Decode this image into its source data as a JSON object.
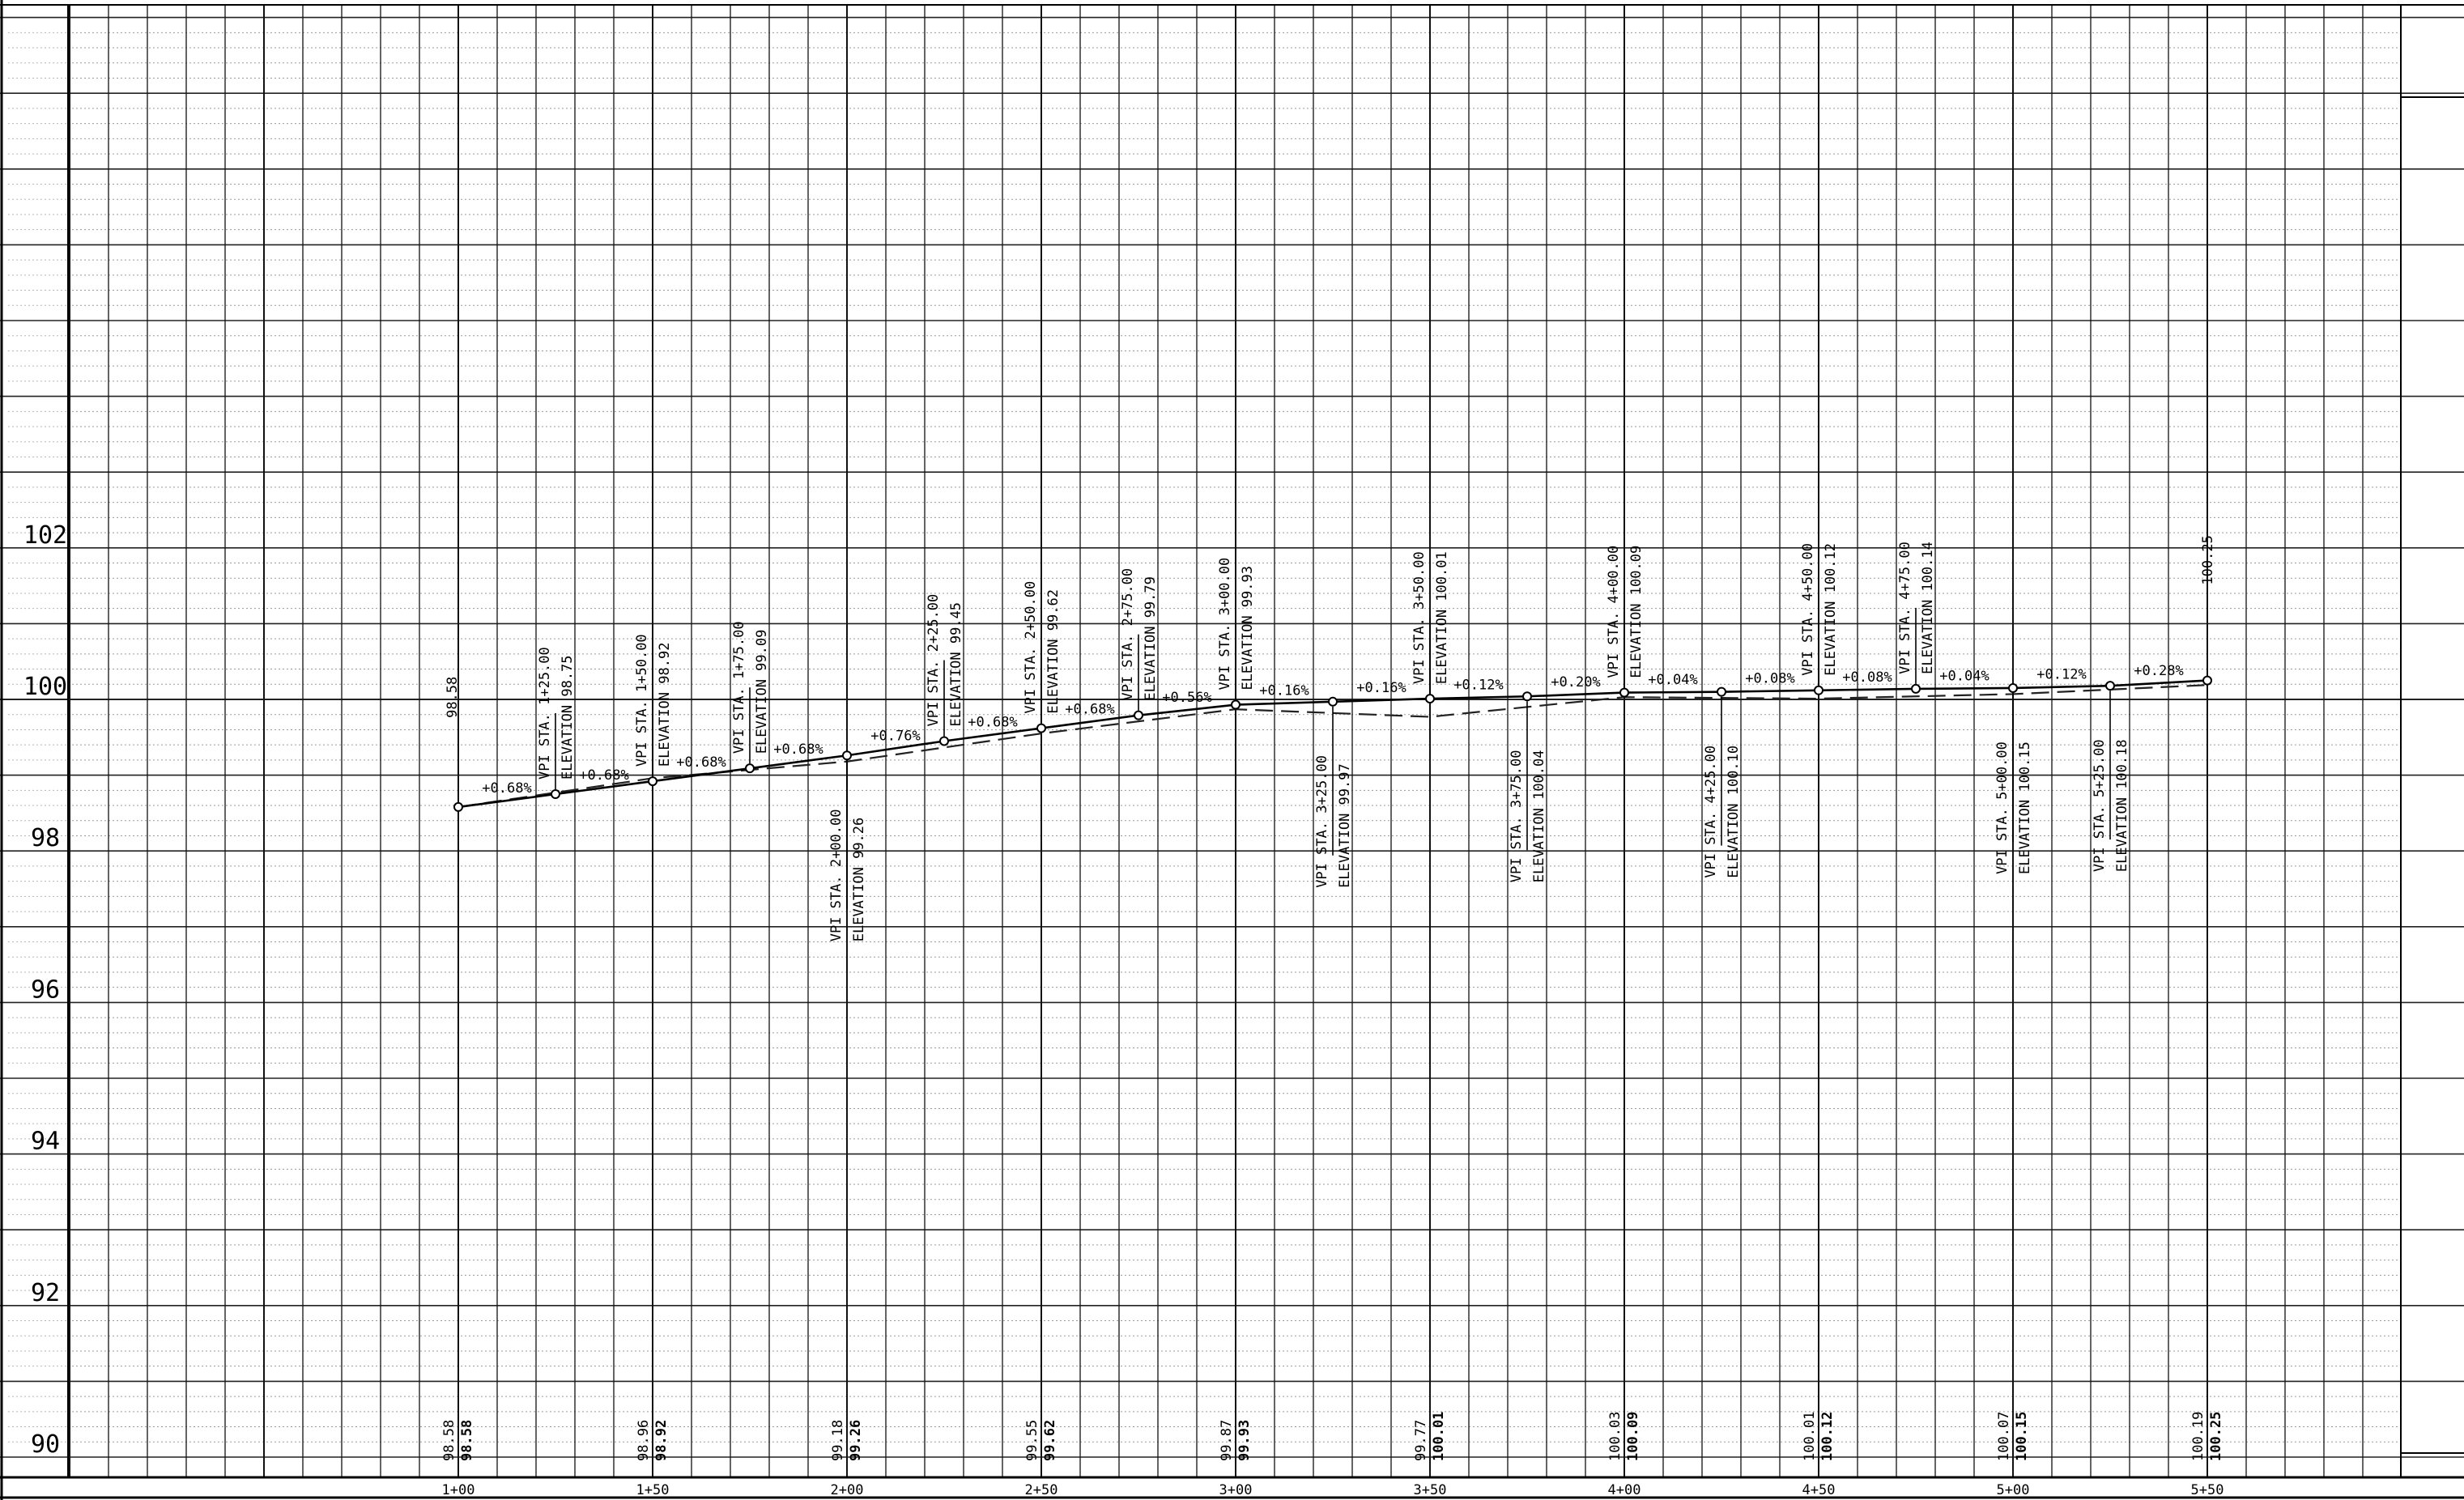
{
  "chart_data": {
    "type": "line",
    "title": "",
    "xlabel": "",
    "ylabel": "",
    "ylim": [
      90,
      110
    ],
    "x_tick_labels": [
      "1+00",
      "1+50",
      "2+00",
      "2+50",
      "3+00",
      "3+50",
      "4+00",
      "4+50",
      "5+00",
      "5+50"
    ],
    "y_tick_labels": [
      "90",
      "92",
      "94",
      "96",
      "98",
      "100",
      "102"
    ],
    "series": [
      {
        "style": "solid",
        "x": [
          100,
          125,
          150,
          175,
          200,
          225,
          250,
          275,
          300,
          325,
          350,
          375,
          400,
          425,
          450,
          475,
          500,
          525,
          550
        ],
        "y": [
          98.58,
          98.75,
          98.92,
          99.09,
          99.26,
          99.45,
          99.62,
          99.79,
          99.93,
          99.97,
          100.01,
          100.04,
          100.09,
          100.1,
          100.12,
          100.14,
          100.15,
          100.18,
          100.25
        ]
      },
      {
        "style": "dashed",
        "x": [
          100,
          150,
          200,
          250,
          300,
          350,
          400,
          450,
          500,
          550
        ],
        "y": [
          98.58,
          98.96,
          99.18,
          99.55,
          99.87,
          99.77,
          100.03,
          100.01,
          100.07,
          100.19
        ]
      }
    ],
    "grade_labels": [
      "+0.68%",
      "+0.68%",
      "+0.68%",
      "+0.68%",
      "+0.76%",
      "+0.68%",
      "+0.68%",
      "+0.56%",
      "+0.16%",
      "+0.16%",
      "+0.12%",
      "+0.20%",
      "+0.04%",
      "+0.08%",
      "+0.08%",
      "+0.04%",
      "+0.12%",
      "+0.28%"
    ],
    "vpi_labels": [
      {
        "sta": "VPI STA. 1+25.00",
        "elev": "ELEVATION 98.75",
        "pos": "above"
      },
      {
        "sta": "VPI STA. 1+50.00",
        "elev": "ELEVATION 98.92",
        "pos": "above"
      },
      {
        "sta": "VPI STA. 1+75.00",
        "elev": "ELEVATION 99.09",
        "pos": "above"
      },
      {
        "sta": "VPI STA. 2+00.00",
        "elev": "ELEVATION 99.26",
        "pos": "below"
      },
      {
        "sta": "VPI STA. 2+25.00",
        "elev": "ELEVATION 99.45",
        "pos": "above"
      },
      {
        "sta": "VPI STA. 2+50.00",
        "elev": "ELEVATION 99.62",
        "pos": "above"
      },
      {
        "sta": "VPI STA. 2+75.00",
        "elev": "ELEVATION 99.79",
        "pos": "above"
      },
      {
        "sta": "VPI STA. 3+00.00",
        "elev": "ELEVATION 99.93",
        "pos": "above"
      },
      {
        "sta": "VPI STA. 3+25.00",
        "elev": "ELEVATION 99.97",
        "pos": "below"
      },
      {
        "sta": "VPI STA. 3+50.00",
        "elev": "ELEVATION 100.01",
        "pos": "above"
      },
      {
        "sta": "VPI STA. 3+75.00",
        "elev": "ELEVATION 100.04",
        "pos": "below"
      },
      {
        "sta": "VPI STA. 4+00.00",
        "elev": "ELEVATION 100.09",
        "pos": "above"
      },
      {
        "sta": "VPI STA. 4+25.00",
        "elev": "ELEVATION 100.10",
        "pos": "below"
      },
      {
        "sta": "VPI STA. 4+50.00",
        "elev": "ELEVATION 100.12",
        "pos": "above"
      },
      {
        "sta": "VPI STA. 4+75.00",
        "elev": "ELEVATION 100.14",
        "pos": "above"
      },
      {
        "sta": "VPI STA. 5+00.00",
        "elev": "ELEVATION 100.15",
        "pos": "below"
      },
      {
        "sta": "VPI STA. 5+25.00",
        "elev": "ELEVATION 100.18",
        "pos": "below"
      }
    ],
    "endpoint_labels": [
      "98.58",
      "100.25"
    ],
    "bottom_elevations": [
      {
        "existing": "98.58",
        "proposed": "98.58"
      },
      {
        "existing": "98.96",
        "proposed": "98.92"
      },
      {
        "existing": "99.18",
        "proposed": "99.26"
      },
      {
        "existing": "99.55",
        "proposed": "99.62"
      },
      {
        "existing": "99.87",
        "proposed": "99.93"
      },
      {
        "existing": "99.77",
        "proposed": "100.01"
      },
      {
        "existing": "100.03",
        "proposed": "100.09"
      },
      {
        "existing": "100.01",
        "proposed": "100.12"
      },
      {
        "existing": "100.07",
        "proposed": "100.15"
      },
      {
        "existing": "100.19",
        "proposed": "100.25"
      }
    ],
    "grid": true
  }
}
